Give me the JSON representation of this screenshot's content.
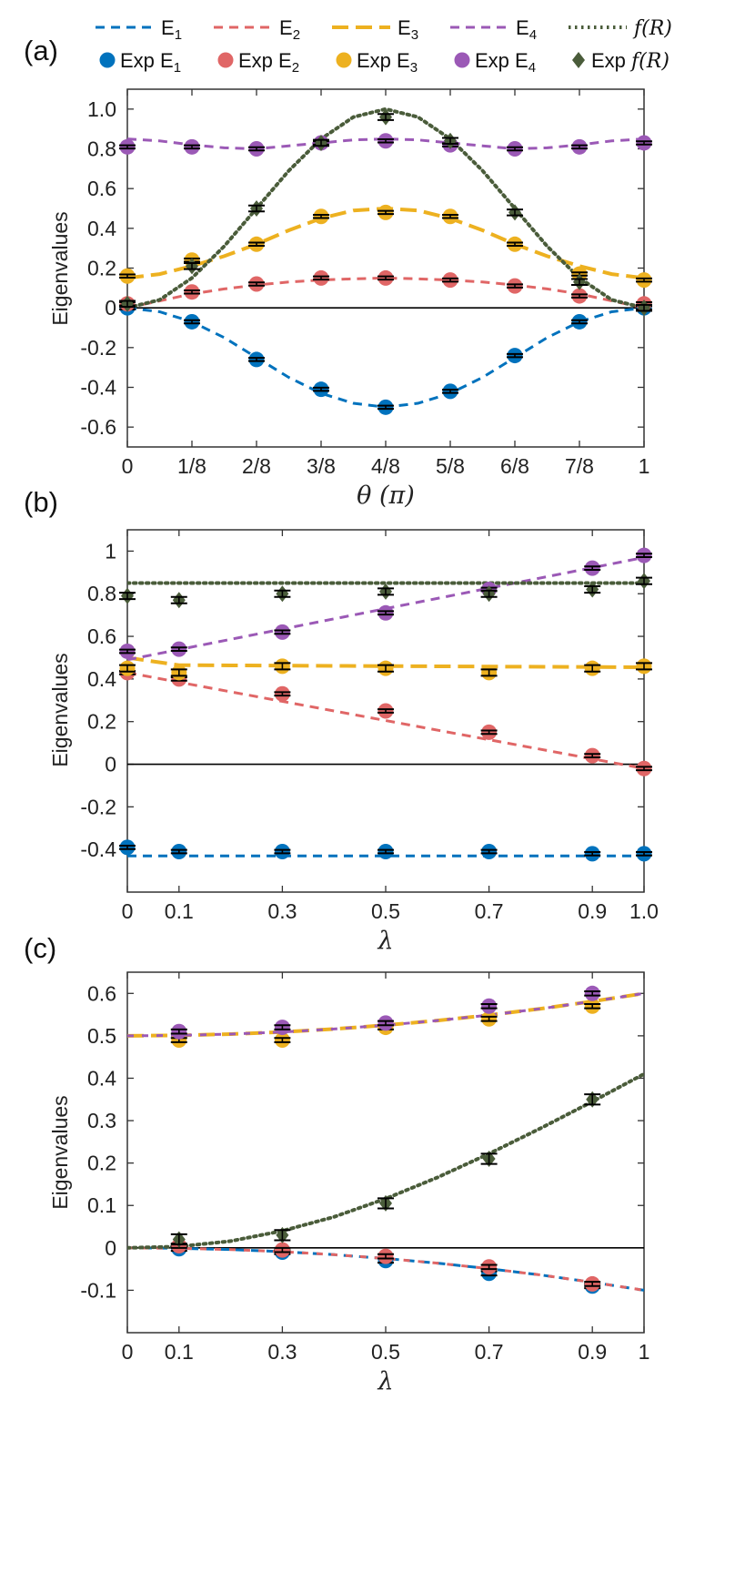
{
  "legend": {
    "items": [
      {
        "type": "line",
        "dash": "dash",
        "color": "#0072BD",
        "label": "E",
        "sub": "1",
        "italic": ""
      },
      {
        "type": "line",
        "dash": "dash",
        "color": "#E06666",
        "label": "E",
        "sub": "2",
        "italic": ""
      },
      {
        "type": "line",
        "dash": "longdash",
        "color": "#EDB120",
        "label": "E",
        "sub": "3",
        "italic": ""
      },
      {
        "type": "line",
        "dash": "dash",
        "color": "#9B59B6",
        "label": "E",
        "sub": "4",
        "italic": ""
      },
      {
        "type": "line",
        "dash": "dot",
        "color": "#4A5C3A",
        "label": "",
        "sub": "",
        "italic": "f(R)"
      },
      {
        "type": "marker",
        "marker": "circle",
        "color": "#0072BD",
        "label": "Exp E",
        "sub": "1",
        "italic": ""
      },
      {
        "type": "marker",
        "marker": "circle",
        "color": "#E06666",
        "label": "Exp E",
        "sub": "2",
        "italic": ""
      },
      {
        "type": "marker",
        "marker": "circle",
        "color": "#EDB120",
        "label": "Exp E",
        "sub": "3",
        "italic": ""
      },
      {
        "type": "marker",
        "marker": "circle",
        "color": "#9B59B6",
        "label": "Exp E",
        "sub": "4",
        "italic": ""
      },
      {
        "type": "marker",
        "marker": "diamond",
        "color": "#4A5C3A",
        "label": "Exp ",
        "sub": "",
        "italic": "f(R)"
      }
    ]
  },
  "chart_data": [
    {
      "type": "line",
      "panel_label": "(a)",
      "ylabel": "Eigenvalues",
      "xlabel": "θ (π)",
      "xlim": [
        0,
        1
      ],
      "ylim": [
        -0.7,
        1.1
      ],
      "xticks": [
        0,
        0.125,
        0.25,
        0.375,
        0.5,
        0.625,
        0.75,
        0.875,
        1
      ],
      "xtick_labels": [
        "0",
        "1/8",
        "2/8",
        "3/8",
        "4/8",
        "5/8",
        "6/8",
        "7/8",
        "1"
      ],
      "yticks": [
        -0.6,
        -0.4,
        -0.2,
        0,
        0.2,
        0.4,
        0.6,
        0.8,
        1.0
      ],
      "ytick_labels": [
        "-0.6",
        "-0.4",
        "-0.2",
        "0",
        "0.2",
        "0.4",
        "0.6",
        "0.8",
        "1.0"
      ],
      "zero_line": true,
      "series": [
        {
          "name": "E1",
          "style": "dash",
          "color": "#0072BD",
          "x": [
            0,
            0.0625,
            0.125,
            0.1875,
            0.25,
            0.3125,
            0.375,
            0.4375,
            0.5,
            0.5625,
            0.625,
            0.6875,
            0.75,
            0.8125,
            0.875,
            0.9375,
            1
          ],
          "y": [
            0,
            -0.02,
            -0.07,
            -0.15,
            -0.25,
            -0.35,
            -0.43,
            -0.48,
            -0.5,
            -0.48,
            -0.43,
            -0.35,
            -0.25,
            -0.15,
            -0.07,
            -0.02,
            0
          ]
        },
        {
          "name": "E2",
          "style": "dash",
          "color": "#E06666",
          "x": [
            0,
            0.0625,
            0.125,
            0.1875,
            0.25,
            0.3125,
            0.375,
            0.4375,
            0.5,
            0.5625,
            0.625,
            0.6875,
            0.75,
            0.8125,
            0.875,
            0.9375,
            1
          ],
          "y": [
            0,
            0.035,
            0.07,
            0.095,
            0.115,
            0.13,
            0.14,
            0.146,
            0.15,
            0.146,
            0.14,
            0.13,
            0.115,
            0.095,
            0.07,
            0.035,
            0
          ]
        },
        {
          "name": "E3",
          "style": "longdash",
          "color": "#EDB120",
          "x": [
            0,
            0.0625,
            0.125,
            0.1875,
            0.25,
            0.3125,
            0.375,
            0.4375,
            0.5,
            0.5625,
            0.625,
            0.6875,
            0.75,
            0.8125,
            0.875,
            0.9375,
            1
          ],
          "y": [
            0.15,
            0.17,
            0.21,
            0.26,
            0.32,
            0.39,
            0.45,
            0.49,
            0.5,
            0.49,
            0.45,
            0.39,
            0.32,
            0.26,
            0.21,
            0.17,
            0.15
          ]
        },
        {
          "name": "E4",
          "style": "dash",
          "color": "#9B59B6",
          "x": [
            0,
            0.0625,
            0.125,
            0.1875,
            0.25,
            0.3125,
            0.375,
            0.4375,
            0.5,
            0.5625,
            0.625,
            0.6875,
            0.75,
            0.8125,
            0.875,
            0.9375,
            1
          ],
          "y": [
            0.85,
            0.84,
            0.82,
            0.805,
            0.8,
            0.815,
            0.83,
            0.845,
            0.85,
            0.845,
            0.83,
            0.815,
            0.8,
            0.805,
            0.82,
            0.84,
            0.85
          ]
        },
        {
          "name": "f(R)",
          "style": "dot",
          "color": "#4A5C3A",
          "x": [
            0,
            0.0625,
            0.125,
            0.1875,
            0.25,
            0.3125,
            0.375,
            0.4375,
            0.5,
            0.5625,
            0.625,
            0.6875,
            0.75,
            0.8125,
            0.875,
            0.9375,
            1
          ],
          "y": [
            0,
            0.04,
            0.15,
            0.31,
            0.5,
            0.69,
            0.85,
            0.96,
            1.0,
            0.96,
            0.85,
            0.69,
            0.5,
            0.31,
            0.15,
            0.04,
            0
          ]
        }
      ],
      "points": [
        {
          "name": "Exp E1",
          "marker": "circle",
          "color": "#0072BD",
          "err": 0.008,
          "x": [
            0,
            0.125,
            0.25,
            0.375,
            0.5,
            0.625,
            0.75,
            0.875,
            1
          ],
          "y": [
            0,
            -0.07,
            -0.26,
            -0.41,
            -0.5,
            -0.42,
            -0.24,
            -0.07,
            0
          ]
        },
        {
          "name": "Exp E2",
          "marker": "circle",
          "color": "#E06666",
          "err": 0.008,
          "x": [
            0,
            0.125,
            0.25,
            0.375,
            0.5,
            0.625,
            0.75,
            0.875,
            1
          ],
          "y": [
            0.02,
            0.08,
            0.12,
            0.15,
            0.15,
            0.14,
            0.11,
            0.06,
            0.02
          ]
        },
        {
          "name": "Exp E3",
          "marker": "circle",
          "color": "#EDB120",
          "err": 0.008,
          "x": [
            0,
            0.125,
            0.25,
            0.375,
            0.5,
            0.625,
            0.75,
            0.875,
            1
          ],
          "y": [
            0.16,
            0.24,
            0.32,
            0.46,
            0.48,
            0.46,
            0.32,
            0.17,
            0.14
          ]
        },
        {
          "name": "Exp E4",
          "marker": "circle",
          "color": "#9B59B6",
          "err": 0.008,
          "x": [
            0,
            0.125,
            0.25,
            0.375,
            0.5,
            0.625,
            0.75,
            0.875,
            1
          ],
          "y": [
            0.81,
            0.81,
            0.8,
            0.83,
            0.84,
            0.82,
            0.8,
            0.81,
            0.83
          ]
        },
        {
          "name": "Exp f(R)",
          "marker": "diamond",
          "color": "#4A5C3A",
          "err": 0.015,
          "x": [
            0,
            0.125,
            0.25,
            0.375,
            0.5,
            0.625,
            0.75,
            0.875,
            1
          ],
          "y": [
            0.02,
            0.21,
            0.5,
            0.83,
            0.96,
            0.84,
            0.48,
            0.13,
            0
          ]
        }
      ]
    },
    {
      "type": "line",
      "panel_label": "(b)",
      "ylabel": "Eigenvalues",
      "xlabel": "λ",
      "xlim": [
        0,
        1
      ],
      "ylim": [
        -0.6,
        1.1
      ],
      "xticks": [
        0,
        0.1,
        0.3,
        0.5,
        0.7,
        0.9,
        1.0
      ],
      "xtick_labels": [
        "0",
        "0.1",
        "0.3",
        "0.5",
        "0.7",
        "0.9",
        "1.0"
      ],
      "yticks": [
        -0.4,
        -0.2,
        0,
        0.2,
        0.4,
        0.6,
        0.8,
        1
      ],
      "ytick_labels": [
        "-0.4",
        "-0.2",
        "0",
        "0.2",
        "0.4",
        "0.6",
        "0.8",
        "1"
      ],
      "zero_line": true,
      "series": [
        {
          "name": "E1",
          "style": "dash",
          "color": "#0072BD",
          "x": [
            0,
            1
          ],
          "y": [
            -0.43,
            -0.43
          ]
        },
        {
          "name": "E2",
          "style": "dash",
          "color": "#E06666",
          "x": [
            0,
            1
          ],
          "y": [
            0.43,
            -0.02
          ]
        },
        {
          "name": "E3",
          "style": "longdash",
          "color": "#EDB120",
          "x": [
            0,
            0.1,
            1
          ],
          "y": [
            0.5,
            0.465,
            0.455
          ]
        },
        {
          "name": "E4",
          "style": "dash",
          "color": "#9B59B6",
          "x": [
            0,
            1
          ],
          "y": [
            0.49,
            0.97
          ]
        },
        {
          "name": "f(R)",
          "style": "dot",
          "color": "#4A5C3A",
          "x": [
            0,
            1
          ],
          "y": [
            0.85,
            0.85
          ]
        }
      ],
      "points": [
        {
          "name": "Exp E1",
          "marker": "circle",
          "color": "#0072BD",
          "err": 0.008,
          "x": [
            0,
            0.1,
            0.3,
            0.5,
            0.7,
            0.9,
            1.0
          ],
          "y": [
            -0.39,
            -0.41,
            -0.41,
            -0.41,
            -0.41,
            -0.42,
            -0.42
          ]
        },
        {
          "name": "Exp E2",
          "marker": "circle",
          "color": "#E06666",
          "err": 0.008,
          "x": [
            0,
            0.1,
            0.3,
            0.5,
            0.7,
            0.9,
            1.0
          ],
          "y": [
            0.43,
            0.4,
            0.33,
            0.25,
            0.15,
            0.04,
            -0.02
          ]
        },
        {
          "name": "Exp E3",
          "marker": "circle",
          "color": "#EDB120",
          "err": 0.015,
          "x": [
            0,
            0.1,
            0.3,
            0.5,
            0.7,
            0.9,
            1.0
          ],
          "y": [
            0.45,
            0.43,
            0.46,
            0.45,
            0.43,
            0.45,
            0.46
          ]
        },
        {
          "name": "Exp E4",
          "marker": "circle",
          "color": "#9B59B6",
          "err": 0.008,
          "x": [
            0,
            0.1,
            0.3,
            0.5,
            0.7,
            0.9,
            1.0
          ],
          "y": [
            0.53,
            0.54,
            0.62,
            0.71,
            0.82,
            0.92,
            0.98
          ]
        },
        {
          "name": "Exp f(R)",
          "marker": "diamond",
          "color": "#4A5C3A",
          "err": 0.015,
          "x": [
            0,
            0.1,
            0.3,
            0.5,
            0.7,
            0.9,
            1.0
          ],
          "y": [
            0.79,
            0.77,
            0.8,
            0.81,
            0.8,
            0.82,
            0.86
          ]
        }
      ]
    },
    {
      "type": "line",
      "panel_label": "(c)",
      "ylabel": "Eigenvalues",
      "xlabel": "λ",
      "xlim": [
        0,
        1
      ],
      "ylim": [
        -0.2,
        0.65
      ],
      "xticks": [
        0,
        0.1,
        0.3,
        0.5,
        0.7,
        0.9,
        1
      ],
      "xtick_labels": [
        "0",
        "0.1",
        "0.3",
        "0.5",
        "0.7",
        "0.9",
        "1"
      ],
      "yticks": [
        -0.1,
        0,
        0.1,
        0.2,
        0.3,
        0.4,
        0.5,
        0.6
      ],
      "ytick_labels": [
        "-0.1",
        "0",
        "0.1",
        "0.2",
        "0.3",
        "0.4",
        "0.5",
        "0.6"
      ],
      "zero_line": true,
      "series": [
        {
          "name": "E1",
          "style": "dash",
          "color": "#0072BD",
          "x": [
            0,
            0.1,
            0.2,
            0.3,
            0.4,
            0.5,
            0.6,
            0.7,
            0.8,
            0.9,
            1
          ],
          "y": [
            0,
            -0.001,
            -0.004,
            -0.009,
            -0.016,
            -0.025,
            -0.036,
            -0.049,
            -0.064,
            -0.081,
            -0.1
          ]
        },
        {
          "name": "E2",
          "style": "dash2",
          "color": "#E06666",
          "x": [
            0,
            0.1,
            0.2,
            0.3,
            0.4,
            0.5,
            0.6,
            0.7,
            0.8,
            0.9,
            1
          ],
          "y": [
            0,
            -0.001,
            -0.004,
            -0.009,
            -0.016,
            -0.025,
            -0.036,
            -0.049,
            -0.064,
            -0.081,
            -0.1
          ]
        },
        {
          "name": "E3",
          "style": "longdash",
          "color": "#EDB120",
          "x": [
            0,
            0.1,
            0.2,
            0.3,
            0.4,
            0.5,
            0.6,
            0.7,
            0.8,
            0.9,
            1
          ],
          "y": [
            0.5,
            0.501,
            0.504,
            0.509,
            0.516,
            0.525,
            0.536,
            0.549,
            0.564,
            0.581,
            0.6
          ]
        },
        {
          "name": "E4",
          "style": "dash2",
          "color": "#9B59B6",
          "x": [
            0,
            0.1,
            0.2,
            0.3,
            0.4,
            0.5,
            0.6,
            0.7,
            0.8,
            0.9,
            1
          ],
          "y": [
            0.5,
            0.501,
            0.504,
            0.509,
            0.516,
            0.525,
            0.536,
            0.549,
            0.564,
            0.581,
            0.6
          ]
        },
        {
          "name": "f(R)",
          "style": "dot",
          "color": "#4A5C3A",
          "x": [
            0,
            0.1,
            0.2,
            0.3,
            0.4,
            0.5,
            0.6,
            0.7,
            0.8,
            0.9,
            1
          ],
          "y": [
            0,
            0.003,
            0.016,
            0.04,
            0.073,
            0.116,
            0.166,
            0.222,
            0.282,
            0.345,
            0.41
          ]
        }
      ],
      "points": [
        {
          "name": "Exp E1",
          "marker": "circle",
          "color": "#0072BD",
          "err": 0.005,
          "x": [
            0.1,
            0.3,
            0.5,
            0.7,
            0.9
          ],
          "y": [
            -0.002,
            -0.01,
            -0.03,
            -0.06,
            -0.09
          ]
        },
        {
          "name": "Exp E2",
          "marker": "circle",
          "color": "#E06666",
          "err": 0.005,
          "x": [
            0.1,
            0.3,
            0.5,
            0.7,
            0.9
          ],
          "y": [
            0.005,
            -0.005,
            -0.02,
            -0.045,
            -0.085
          ]
        },
        {
          "name": "Exp E3",
          "marker": "circle",
          "color": "#EDB120",
          "err": 0.005,
          "x": [
            0.1,
            0.3,
            0.5,
            0.7,
            0.9
          ],
          "y": [
            0.49,
            0.49,
            0.52,
            0.54,
            0.57
          ]
        },
        {
          "name": "Exp E4",
          "marker": "circle",
          "color": "#9B59B6",
          "err": 0.005,
          "x": [
            0.1,
            0.3,
            0.5,
            0.7,
            0.9
          ],
          "y": [
            0.51,
            0.52,
            0.53,
            0.57,
            0.6
          ]
        },
        {
          "name": "Exp f(R)",
          "marker": "diamond",
          "color": "#4A5C3A",
          "err": 0.012,
          "x": [
            0.1,
            0.3,
            0.5,
            0.7,
            0.9
          ],
          "y": [
            0.02,
            0.03,
            0.105,
            0.21,
            0.35
          ]
        }
      ]
    }
  ]
}
